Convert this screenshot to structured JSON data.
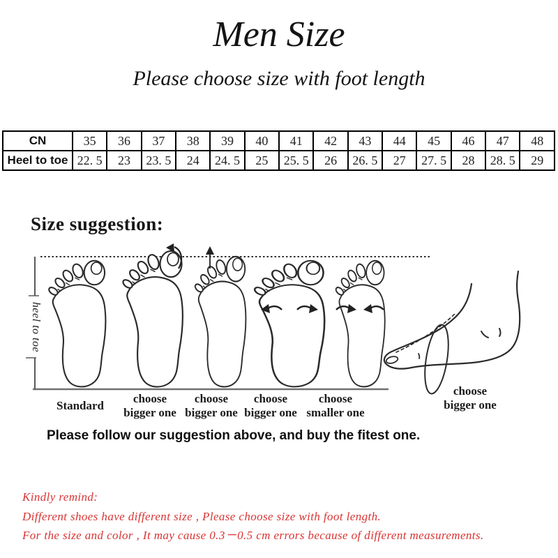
{
  "header": {
    "title": "Men Size",
    "subtitle": "Please choose size with foot length"
  },
  "size_table": {
    "row1_header": "CN",
    "row2_header": "Heel to toe",
    "sizes": [
      "35",
      "36",
      "37",
      "38",
      "39",
      "40",
      "41",
      "42",
      "43",
      "44",
      "45",
      "46",
      "47",
      "48"
    ],
    "lengths": [
      "22. 5",
      "23",
      "23. 5",
      "24",
      "24. 5",
      "25",
      "25. 5",
      "26",
      "26. 5",
      "27",
      "27. 5",
      "28",
      "28. 5",
      "29"
    ]
  },
  "suggestion": {
    "heading": "Size suggestion:",
    "axis_label": "heel to toe",
    "foot_labels": [
      {
        "line1": "Standard"
      },
      {
        "line1": "choose",
        "line2": "bigger one"
      },
      {
        "line1": "choose",
        "line2": "bigger one"
      },
      {
        "line1": "choose",
        "line2": "bigger one"
      },
      {
        "line1": "choose",
        "line2": "smaller one"
      },
      {
        "line1": "choose",
        "line2": "bigger one"
      }
    ],
    "note": "Please follow our suggestion above, and buy the fitest one."
  },
  "remind": {
    "heading": "Kindly remind:",
    "line1": "Different shoes have different size , Please choose size with foot length.",
    "line2": "For the size and color , It may cause 0.3－0.5 cm errors because of different measurements."
  },
  "colors": {
    "ink": "#1a1a1a",
    "remind_red": "#d93434",
    "diagram_line_gray": "#707070",
    "sketch_stroke": "#2b2b2b",
    "table_border": "#000000"
  }
}
